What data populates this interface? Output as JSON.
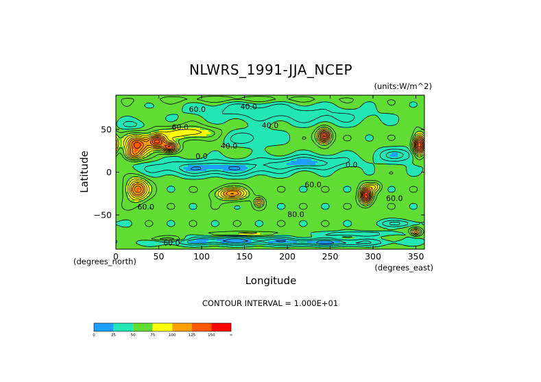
{
  "chart_data": {
    "type": "heatmap",
    "title": "NLWRS_1991-JJA_NCEP",
    "units_note": "(units:W/m^2)",
    "xlabel": "Longitude",
    "ylabel": "Latitude",
    "x_unit_note": "(degrees_east)",
    "y_unit_note": "(degrees_north)",
    "xlim": [
      0,
      360
    ],
    "ylim": [
      -90,
      90
    ],
    "x_ticks": [
      0,
      50,
      100,
      150,
      200,
      250,
      300,
      350
    ],
    "y_ticks": [
      50,
      0,
      -50
    ],
    "x_tick_labels": [
      "0",
      "50",
      "100",
      "150",
      "200",
      "250",
      "300",
      "350"
    ],
    "y_tick_labels": [
      "50",
      "0",
      "−50"
    ],
    "contour_interval_text": "CONTOUR INTERVAL = 1.000E+01",
    "contour_labels": [
      {
        "text": "40.0",
        "lon": 155,
        "lat": 76
      },
      {
        "text": "60.0",
        "lon": 95,
        "lat": 73
      },
      {
        "text": "40.0",
        "lon": 180,
        "lat": 54
      },
      {
        "text": "60.0",
        "lon": 75,
        "lat": 52
      },
      {
        "text": "40.0",
        "lon": 132,
        "lat": 30
      },
      {
        "text": "0.0",
        "lon": 100,
        "lat": 18
      },
      {
        "text": "0.0",
        "lon": 275,
        "lat": 8
      },
      {
        "text": "60.0",
        "lon": 230,
        "lat": -15
      },
      {
        "text": "80.0",
        "lon": 210,
        "lat": -50
      },
      {
        "text": "60.0",
        "lon": 325,
        "lat": -31
      },
      {
        "text": "60.0",
        "lon": 35,
        "lat": -41
      },
      {
        "text": "60.0",
        "lon": 65,
        "lat": -83
      }
    ],
    "levels": [
      0,
      25,
      50,
      75,
      100,
      125,
      150
    ],
    "level_labels": [
      "0",
      "25",
      "50",
      "75",
      "100",
      "125",
      "150",
      "∞"
    ],
    "level_colors": [
      "#1ea0ff",
      "#22e6b4",
      "#60dc32",
      "#ffff00",
      "#ffa000",
      "#ff5a00",
      "#ff0000"
    ],
    "field": {
      "background": 55,
      "features": [
        {
          "lon": 25,
          "lat": 32,
          "rlon": 14,
          "rlat": 11,
          "value": 135
        },
        {
          "lon": 48,
          "lat": 36,
          "rlon": 10,
          "rlat": 8,
          "value": 140
        },
        {
          "lon": 63,
          "lat": 29,
          "rlon": 9,
          "rlat": 6,
          "value": 138
        },
        {
          "lon": 85,
          "lat": 46,
          "rlon": 35,
          "rlat": 8,
          "value": 88
        },
        {
          "lon": 20,
          "lat": 20,
          "rlon": 10,
          "rlat": 6,
          "value": 100
        },
        {
          "lon": 25,
          "lat": -20,
          "rlon": 12,
          "rlat": 12,
          "value": 128
        },
        {
          "lon": 135,
          "lat": -25,
          "rlon": 18,
          "rlat": 7,
          "value": 118
        },
        {
          "lon": 167,
          "lat": -35,
          "rlon": 5,
          "rlat": 5,
          "value": 104
        },
        {
          "lon": 243,
          "lat": 42,
          "rlon": 8,
          "rlat": 8,
          "value": 150
        },
        {
          "lon": 292,
          "lat": -27,
          "rlon": 7,
          "rlat": 10,
          "value": 150
        },
        {
          "lon": 302,
          "lat": -17,
          "rlon": 7,
          "rlat": 5,
          "value": 85
        },
        {
          "lon": 354,
          "lat": 32,
          "rlon": 7,
          "rlat": 12,
          "value": 150
        },
        {
          "lon": 350,
          "lat": -70,
          "rlon": 6,
          "rlat": 4,
          "value": 110
        },
        {
          "lon": 115,
          "lat": 5,
          "rlon": 80,
          "rlat": 9,
          "value": 20
        },
        {
          "lon": 225,
          "lat": 12,
          "rlon": 50,
          "rlat": 8,
          "value": 25
        },
        {
          "lon": 330,
          "lat": 20,
          "rlon": 28,
          "rlat": 8,
          "value": 28
        },
        {
          "lon": 160,
          "lat": 72,
          "rlon": 70,
          "rlat": 12,
          "value": 35
        },
        {
          "lon": 250,
          "lat": 65,
          "rlon": 60,
          "rlat": 10,
          "value": 40
        },
        {
          "lon": 155,
          "lat": 40,
          "rlon": 35,
          "rlat": 10,
          "value": 35
        },
        {
          "lon": 20,
          "lat": 55,
          "rlon": 18,
          "rlat": 6,
          "value": 38
        },
        {
          "lon": 120,
          "lat": -80,
          "rlon": 80,
          "rlat": 5,
          "value": 18
        },
        {
          "lon": 250,
          "lat": -82,
          "rlon": 70,
          "rlat": 4,
          "value": 22
        },
        {
          "lon": 280,
          "lat": -72,
          "rlon": 45,
          "rlat": 3,
          "value": 30
        },
        {
          "lon": 60,
          "lat": -78,
          "rlon": 30,
          "rlat": 3,
          "value": 88
        },
        {
          "lon": 150,
          "lat": -72,
          "rlon": 40,
          "rlat": 2,
          "value": 80
        },
        {
          "lon": 330,
          "lat": -60,
          "rlon": 25,
          "rlat": 4,
          "value": 30
        },
        {
          "lon": 150,
          "lat": 85,
          "rlon": 100,
          "rlat": 4,
          "value": 70
        }
      ]
    }
  }
}
